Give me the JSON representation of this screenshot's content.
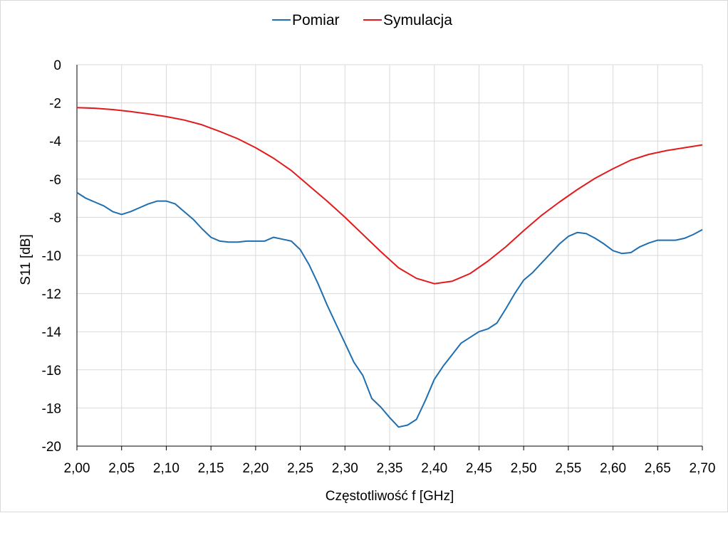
{
  "chart_data": {
    "type": "line",
    "title": "",
    "xlabel": "Częstotliwość f [GHz]",
    "ylabel": "S11 [dB]",
    "xlim": [
      2.0,
      2.7
    ],
    "ylim": [
      -20,
      0
    ],
    "x_ticks": [
      "2,00",
      "2,05",
      "2,10",
      "2,15",
      "2,20",
      "2,25",
      "2,30",
      "2,35",
      "2,40",
      "2,45",
      "2,50",
      "2,55",
      "2,60",
      "2,65",
      "2,70"
    ],
    "y_ticks": [
      "0",
      "-2",
      "-4",
      "-6",
      "-8",
      "-10",
      "-12",
      "-14",
      "-16",
      "-18",
      "-20"
    ],
    "grid": true,
    "legend_position": "top-center",
    "series": [
      {
        "name": "Pomiar",
        "color": "#1f6fb0",
        "points": [
          [
            2.0,
            -6.7
          ],
          [
            2.01,
            -7.0
          ],
          [
            2.02,
            -7.2
          ],
          [
            2.03,
            -7.4
          ],
          [
            2.04,
            -7.7
          ],
          [
            2.05,
            -7.85
          ],
          [
            2.06,
            -7.7
          ],
          [
            2.07,
            -7.5
          ],
          [
            2.08,
            -7.3
          ],
          [
            2.09,
            -7.15
          ],
          [
            2.1,
            -7.15
          ],
          [
            2.11,
            -7.3
          ],
          [
            2.12,
            -7.7
          ],
          [
            2.13,
            -8.1
          ],
          [
            2.14,
            -8.6
          ],
          [
            2.15,
            -9.05
          ],
          [
            2.16,
            -9.25
          ],
          [
            2.17,
            -9.3
          ],
          [
            2.18,
            -9.3
          ],
          [
            2.19,
            -9.25
          ],
          [
            2.2,
            -9.25
          ],
          [
            2.21,
            -9.25
          ],
          [
            2.22,
            -9.05
          ],
          [
            2.23,
            -9.15
          ],
          [
            2.24,
            -9.25
          ],
          [
            2.25,
            -9.7
          ],
          [
            2.26,
            -10.5
          ],
          [
            2.27,
            -11.5
          ],
          [
            2.28,
            -12.6
          ],
          [
            2.29,
            -13.6
          ],
          [
            2.3,
            -14.6
          ],
          [
            2.31,
            -15.6
          ],
          [
            2.32,
            -16.3
          ],
          [
            2.33,
            -17.5
          ],
          [
            2.34,
            -17.95
          ],
          [
            2.35,
            -18.5
          ],
          [
            2.36,
            -19.0
          ],
          [
            2.37,
            -18.9
          ],
          [
            2.38,
            -18.6
          ],
          [
            2.39,
            -17.6
          ],
          [
            2.4,
            -16.5
          ],
          [
            2.41,
            -15.8
          ],
          [
            2.42,
            -15.2
          ],
          [
            2.43,
            -14.6
          ],
          [
            2.44,
            -14.3
          ],
          [
            2.45,
            -14.0
          ],
          [
            2.46,
            -13.85
          ],
          [
            2.47,
            -13.55
          ],
          [
            2.48,
            -12.8
          ],
          [
            2.49,
            -12.0
          ],
          [
            2.5,
            -11.3
          ],
          [
            2.51,
            -10.9
          ],
          [
            2.52,
            -10.4
          ],
          [
            2.53,
            -9.9
          ],
          [
            2.54,
            -9.4
          ],
          [
            2.55,
            -9.0
          ],
          [
            2.56,
            -8.8
          ],
          [
            2.57,
            -8.85
          ],
          [
            2.58,
            -9.1
          ],
          [
            2.59,
            -9.4
          ],
          [
            2.6,
            -9.75
          ],
          [
            2.61,
            -9.9
          ],
          [
            2.62,
            -9.85
          ],
          [
            2.63,
            -9.55
          ],
          [
            2.64,
            -9.35
          ],
          [
            2.65,
            -9.2
          ],
          [
            2.66,
            -9.2
          ],
          [
            2.67,
            -9.2
          ],
          [
            2.68,
            -9.1
          ],
          [
            2.69,
            -8.9
          ],
          [
            2.7,
            -8.65
          ]
        ]
      },
      {
        "name": "Symulacja",
        "color": "#e31a1c",
        "points": [
          [
            2.0,
            -2.25
          ],
          [
            2.02,
            -2.28
          ],
          [
            2.04,
            -2.35
          ],
          [
            2.06,
            -2.45
          ],
          [
            2.08,
            -2.58
          ],
          [
            2.1,
            -2.72
          ],
          [
            2.12,
            -2.9
          ],
          [
            2.14,
            -3.15
          ],
          [
            2.16,
            -3.5
          ],
          [
            2.18,
            -3.88
          ],
          [
            2.2,
            -4.35
          ],
          [
            2.22,
            -4.9
          ],
          [
            2.24,
            -5.55
          ],
          [
            2.26,
            -6.35
          ],
          [
            2.28,
            -7.15
          ],
          [
            2.3,
            -8.0
          ],
          [
            2.32,
            -8.9
          ],
          [
            2.34,
            -9.8
          ],
          [
            2.36,
            -10.65
          ],
          [
            2.38,
            -11.2
          ],
          [
            2.4,
            -11.48
          ],
          [
            2.42,
            -11.35
          ],
          [
            2.44,
            -10.95
          ],
          [
            2.46,
            -10.3
          ],
          [
            2.48,
            -9.55
          ],
          [
            2.5,
            -8.7
          ],
          [
            2.52,
            -7.9
          ],
          [
            2.54,
            -7.2
          ],
          [
            2.56,
            -6.55
          ],
          [
            2.58,
            -5.95
          ],
          [
            2.6,
            -5.45
          ],
          [
            2.62,
            -5.0
          ],
          [
            2.64,
            -4.7
          ],
          [
            2.66,
            -4.5
          ],
          [
            2.68,
            -4.35
          ],
          [
            2.7,
            -4.2
          ]
        ]
      }
    ]
  }
}
